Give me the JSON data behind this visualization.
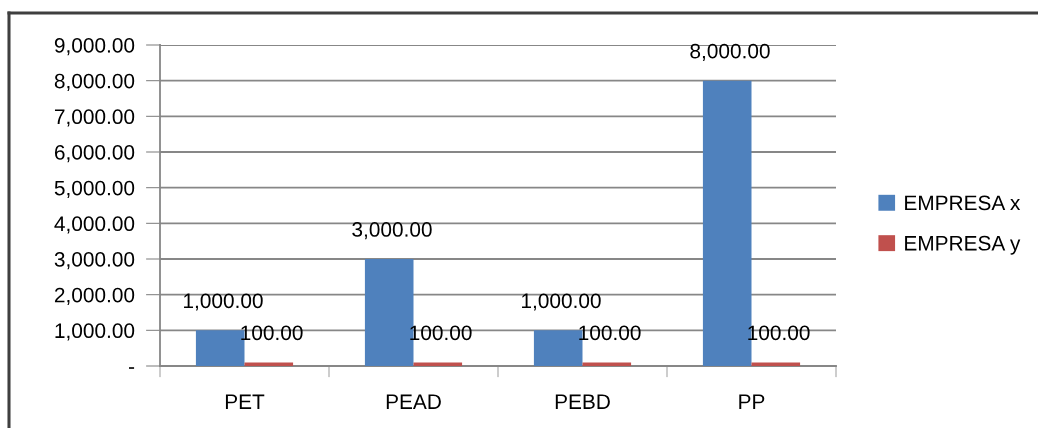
{
  "chart_data": {
    "type": "bar",
    "categories": [
      "PET",
      "PEAD",
      "PEBD",
      "PP"
    ],
    "series": [
      {
        "name": "EMPRESA x",
        "color": "#4f81bd",
        "values": [
          1000,
          3000,
          1000,
          8000
        ],
        "value_labels": [
          "1,000.00",
          "3,000.00",
          "1,000.00",
          "8,000.00"
        ]
      },
      {
        "name": "EMPRESA y",
        "color": "#c0504d",
        "values": [
          100,
          100,
          100,
          100
        ],
        "value_labels": [
          "100.00",
          "100.00",
          "100.00",
          "100.00"
        ]
      }
    ],
    "ylim": [
      0,
      9000
    ],
    "yticks": [
      {
        "value": 0,
        "label": "-"
      },
      {
        "value": 1000,
        "label": "1,000.00"
      },
      {
        "value": 2000,
        "label": "2,000.00"
      },
      {
        "value": 3000,
        "label": "3,000.00"
      },
      {
        "value": 4000,
        "label": "4,000.00"
      },
      {
        "value": 5000,
        "label": "5,000.00"
      },
      {
        "value": 6000,
        "label": "6,000.00"
      },
      {
        "value": 7000,
        "label": "7,000.00"
      },
      {
        "value": 8000,
        "label": "8,000.00"
      },
      {
        "value": 9000,
        "label": "9,000.00"
      }
    ],
    "grid": "y",
    "legend": "right"
  }
}
